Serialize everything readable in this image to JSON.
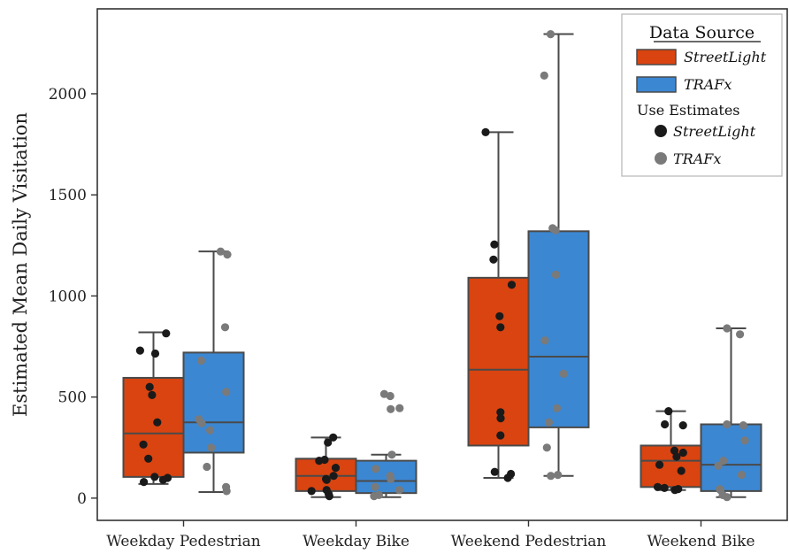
{
  "chart_data": {
    "type": "box",
    "title": "",
    "xlabel": "",
    "ylabel": "Estimated Mean Daily Visitation",
    "ylim": [
      -110,
      2420
    ],
    "yticks": [
      0,
      500,
      1000,
      1500,
      2000
    ],
    "categories": [
      "Weekday Pedestrian",
      "Weekday Bike",
      "Weekend Pedestrian",
      "Weekend Bike"
    ],
    "legend": {
      "title": "Data Source",
      "position": "top-right",
      "box_entries": [
        "StreetLight",
        "TRAFx"
      ],
      "points_heading": "Use Estimates",
      "point_entries": [
        "StreetLight",
        "TRAFx"
      ]
    },
    "series": [
      {
        "name": "StreetLight",
        "box_color": "#d94410",
        "point_color": "#1a1a1a",
        "boxes": [
          {
            "whisker_low": 70,
            "q1": 105,
            "median": 320,
            "q3": 595,
            "whisker_high": 820,
            "points": [
              815,
              730,
              715,
              550,
              510,
              375,
              265,
              195,
              105,
              100,
              90,
              80
            ]
          },
          {
            "whisker_low": 5,
            "q1": 35,
            "median": 110,
            "q3": 195,
            "whisker_high": 300,
            "points": [
              300,
              275,
              190,
              185,
              150,
              110,
              95,
              90,
              40,
              35,
              20,
              10
            ]
          },
          {
            "whisker_low": 100,
            "q1": 260,
            "median": 635,
            "q3": 1090,
            "whisker_high": 1810,
            "points": [
              1810,
              1255,
              1180,
              1055,
              900,
              845,
              425,
              395,
              310,
              130,
              120,
              100
            ]
          },
          {
            "whisker_low": 40,
            "q1": 55,
            "median": 185,
            "q3": 260,
            "whisker_high": 430,
            "points": [
              430,
              365,
              360,
              235,
              225,
              205,
              165,
              135,
              55,
              50,
              45,
              40
            ]
          }
        ]
      },
      {
        "name": "TRAFx",
        "box_color": "#3b87d2",
        "point_color": "#7a7a7a",
        "boxes": [
          {
            "whisker_low": 30,
            "q1": 225,
            "median": 375,
            "q3": 720,
            "whisker_high": 1220,
            "points": [
              1220,
              1205,
              845,
              680,
              525,
              390,
              370,
              335,
              250,
              155,
              55,
              35
            ]
          },
          {
            "whisker_low": 5,
            "q1": 25,
            "median": 85,
            "q3": 185,
            "whisker_high": 215,
            "points": [
              515,
              505,
              445,
              440,
              215,
              145,
              110,
              95,
              55,
              40,
              15,
              10
            ]
          },
          {
            "whisker_low": 110,
            "q1": 350,
            "median": 700,
            "q3": 1320,
            "whisker_high": 2295,
            "points": [
              2295,
              2090,
              1335,
              1325,
              1105,
              780,
              615,
              445,
              375,
              250,
              115,
              110
            ]
          },
          {
            "whisker_low": 5,
            "q1": 35,
            "median": 165,
            "q3": 365,
            "whisker_high": 840,
            "points": [
              840,
              810,
              365,
              360,
              285,
              185,
              160,
              115,
              45,
              40,
              15,
              5
            ]
          }
        ]
      }
    ]
  }
}
